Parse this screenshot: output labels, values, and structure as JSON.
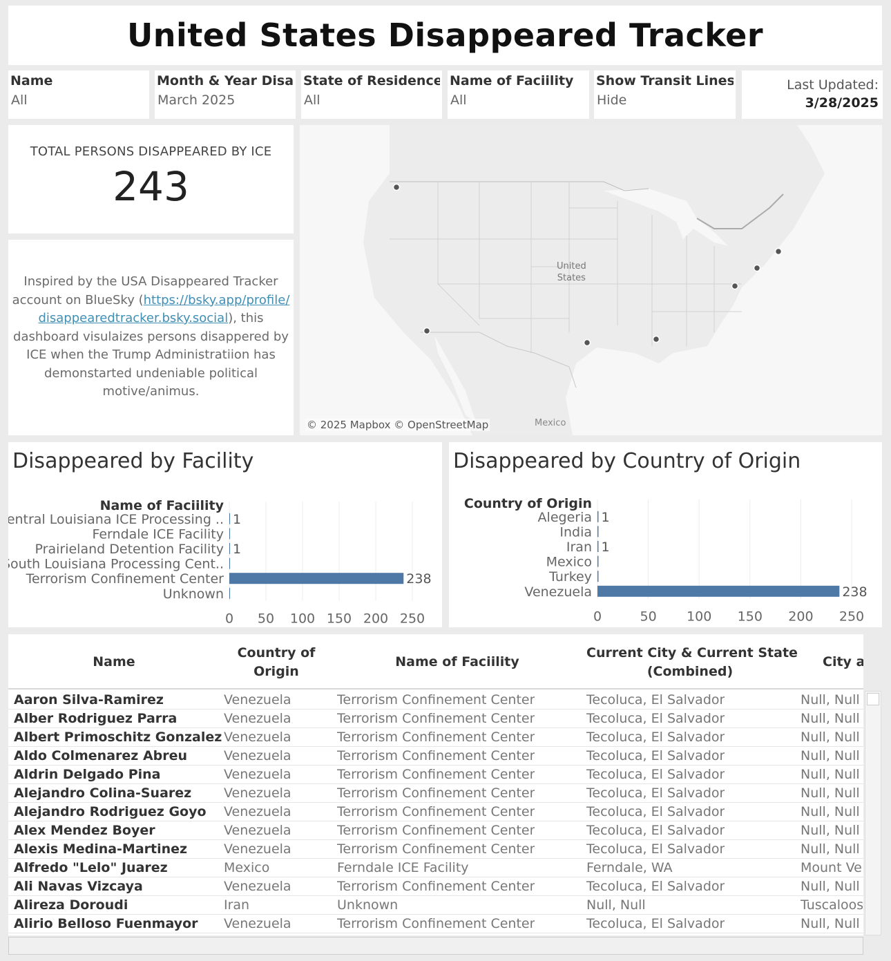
{
  "title": "United States Disappeared Tracker",
  "filters": [
    {
      "label": "Name",
      "value": "All"
    },
    {
      "label": "Month & Year Disapp..",
      "value": "March 2025"
    },
    {
      "label": "State of Residence",
      "value": "All"
    },
    {
      "label": "Name of Faciility",
      "value": "All"
    },
    {
      "label": "Show Transit Lines",
      "value": "Hide"
    }
  ],
  "last_updated": {
    "label": "Last Updated:",
    "value": "3/28/2025"
  },
  "kpi": {
    "label": "TOTAL PERSONS DISAPPEARED BY ICE",
    "value": "243"
  },
  "description": {
    "pre": "Inspired by the USA Disappeared Tracker account on BlueSky (",
    "link": "https://bsky.app/profile/disappearedtracker.bsky.social",
    "post": "), this dashboard visulaizes persons disappered by ICE when the Trump Administratiion has demonstarted undeniable political motive/animus."
  },
  "map": {
    "attribution": "© 2025 Mapbox © OpenStreetMap",
    "label_us_1": "United",
    "label_us_2": "States",
    "label_mexico": "Mexico"
  },
  "chart_data": [
    {
      "type": "bar",
      "orientation": "horizontal",
      "title": "Disappeared by  Facility",
      "ylabel": "Name of Faciility",
      "categories": [
        "Central Louisiana ICE Processing ..",
        "Ferndale ICE Facility",
        "Prairieland Detention Facility",
        "South Louisiana Processing Cent..",
        "Terrorism Confinement Center",
        "Unknown"
      ],
      "values": [
        1,
        1,
        1,
        1,
        238,
        1
      ],
      "labels": [
        "1",
        "",
        "1",
        "",
        "238",
        ""
      ],
      "xlim": [
        0,
        250
      ],
      "xticks": [
        0,
        50,
        100,
        150,
        200,
        250
      ],
      "color": "#4e79a7"
    },
    {
      "type": "bar",
      "orientation": "horizontal",
      "title": "Disappeared by Country of Origin",
      "ylabel": "Country of Origin",
      "categories": [
        "Alegeria",
        "India",
        "Iran",
        "Mexico",
        "Turkey",
        "Venezuela"
      ],
      "values": [
        1,
        1,
        1,
        1,
        1,
        238
      ],
      "labels": [
        "1",
        "",
        "1",
        "",
        "",
        "238"
      ],
      "xlim": [
        0,
        250
      ],
      "xticks": [
        0,
        50,
        100,
        150,
        200,
        250
      ],
      "color": "#4e79a7"
    }
  ],
  "table": {
    "headers": [
      {
        "l1": "Name",
        "l2": ""
      },
      {
        "l1": "Country of",
        "l2": "Origin"
      },
      {
        "l1": "Name of Faciility",
        "l2": ""
      },
      {
        "l1": "Current City & Current State",
        "l2": "(Combined)"
      },
      {
        "l1": "City ar",
        "l2": ""
      }
    ],
    "rows": [
      [
        "Aaron Silva-Ramirez",
        "Venezuela",
        "Terrorism Confinement Center",
        "Tecoluca, El Salvador",
        "Null, Null"
      ],
      [
        "Alber Rodriguez Parra",
        "Venezuela",
        "Terrorism Confinement Center",
        "Tecoluca, El Salvador",
        "Null, Null"
      ],
      [
        "Albert Primoschitz Gonzalez",
        "Venezuela",
        "Terrorism Confinement Center",
        "Tecoluca, El Salvador",
        "Null, Null"
      ],
      [
        "Aldo Colmenarez Abreu",
        "Venezuela",
        "Terrorism Confinement Center",
        "Tecoluca, El Salvador",
        "Null, Null"
      ],
      [
        "Aldrin Delgado Pina",
        "Venezuela",
        "Terrorism Confinement Center",
        "Tecoluca, El Salvador",
        "Null, Null"
      ],
      [
        "Alejandro Colina-Suarez",
        "Venezuela",
        "Terrorism Confinement Center",
        "Tecoluca, El Salvador",
        "Null, Null"
      ],
      [
        "Alejandro Rodriguez Goyo",
        "Venezuela",
        "Terrorism Confinement Center",
        "Tecoluca, El Salvador",
        "Null, Null"
      ],
      [
        "Alex Mendez Boyer",
        "Venezuela",
        "Terrorism Confinement Center",
        "Tecoluca, El Salvador",
        "Null, Null"
      ],
      [
        "Alexis Medina-Martinez",
        "Venezuela",
        "Terrorism Confinement Center",
        "Tecoluca, El Salvador",
        "Null, Null"
      ],
      [
        "Alfredo \"Lelo\" Juarez",
        "Mexico",
        "Ferndale ICE Facility",
        "Ferndale, WA",
        "Mount Ve"
      ],
      [
        "Ali Navas Vizcaya",
        "Venezuela",
        "Terrorism Confinement Center",
        "Tecoluca, El Salvador",
        "Null, Null"
      ],
      [
        "Alireza Doroudi",
        "Iran",
        "Unknown",
        "Null, Null",
        "Tuscaloos"
      ],
      [
        "Alirio Belloso Fuenmayor",
        "Venezuela",
        "Terrorism Confinement Center",
        "Tecoluca, El Salvador",
        "Null, Null"
      ]
    ]
  }
}
